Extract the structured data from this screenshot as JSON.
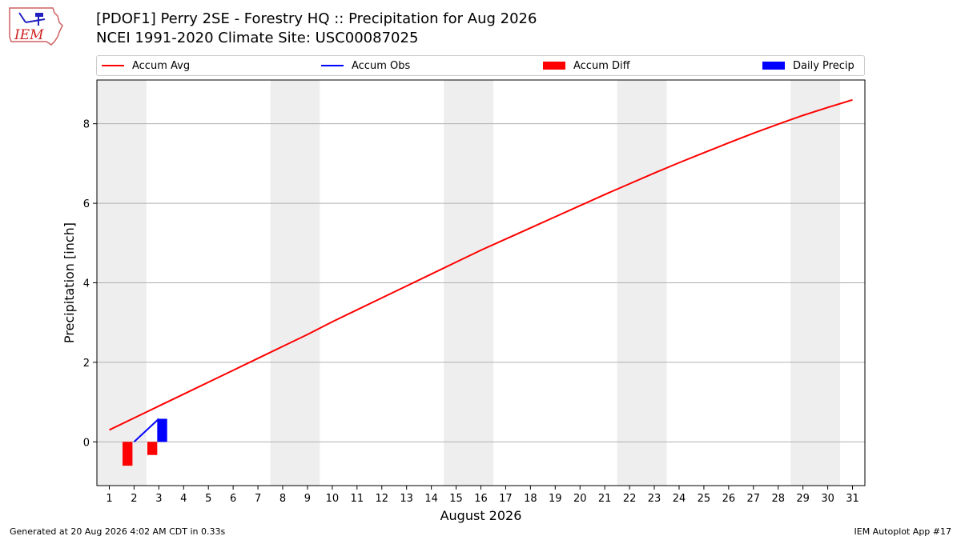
{
  "header": {
    "title_line1": "[PDOF1] Perry 2SE - Forestry HQ :: Precipitation for Aug 2026",
    "title_line2": "NCEI 1991-2020 Climate Site: USC00087025",
    "logo_text": "IEM"
  },
  "footer": {
    "generated": "Generated at 20 Aug 2026 4:02 AM CDT in 0.33s",
    "app": "IEM Autoplot App #17"
  },
  "colors": {
    "accum_avg": "#ff0000",
    "accum_obs": "#0000ff",
    "accum_diff": "#ff0000",
    "daily_precip": "#0000ff",
    "weekend_band": "#eeeeee",
    "grid": "#b0b0b0"
  },
  "chart_data": {
    "type": "line",
    "title": "[PDOF1] Perry 2SE - Forestry HQ :: Precipitation for Aug 2026",
    "subtitle": "NCEI 1991-2020 Climate Site: USC00087025",
    "xlabel": "August 2026",
    "ylabel": "Precipitation [inch]",
    "xlim": [
      0.5,
      31.5
    ],
    "ylim": [
      -1.1,
      9.1
    ],
    "x_ticks": [
      1,
      2,
      3,
      4,
      5,
      6,
      7,
      8,
      9,
      10,
      11,
      12,
      13,
      14,
      15,
      16,
      17,
      18,
      19,
      20,
      21,
      22,
      23,
      24,
      25,
      26,
      27,
      28,
      29,
      30,
      31
    ],
    "y_ticks": [
      0,
      2,
      4,
      6,
      8
    ],
    "grid": "horizontal",
    "legend_position": "top",
    "legend": [
      "Accum Avg",
      "Accum Obs",
      "Accum Diff",
      "Daily Precip"
    ],
    "weekend_bands": [
      [
        0.5,
        2.5
      ],
      [
        7.5,
        9.5
      ],
      [
        14.5,
        16.5
      ],
      [
        21.5,
        23.5
      ],
      [
        28.5,
        30.5
      ]
    ],
    "series": [
      {
        "name": "Accum Avg",
        "kind": "line",
        "x": [
          1,
          2,
          3,
          4,
          5,
          6,
          7,
          8,
          9,
          10,
          11,
          12,
          13,
          14,
          15,
          16,
          17,
          18,
          19,
          20,
          21,
          22,
          23,
          24,
          25,
          26,
          27,
          28,
          29,
          30,
          31
        ],
        "values": [
          0.3,
          0.6,
          0.9,
          1.2,
          1.5,
          1.8,
          2.1,
          2.4,
          2.7,
          3.02,
          3.32,
          3.62,
          3.92,
          4.22,
          4.52,
          4.82,
          5.1,
          5.38,
          5.66,
          5.94,
          6.22,
          6.49,
          6.76,
          7.02,
          7.27,
          7.52,
          7.76,
          7.99,
          8.21,
          8.41,
          8.6
        ]
      },
      {
        "name": "Accum Obs",
        "kind": "line",
        "x": [
          2,
          3
        ],
        "values": [
          0.0,
          0.58
        ]
      },
      {
        "name": "Accum Diff",
        "kind": "bar",
        "x": [
          2,
          3
        ],
        "values": [
          -0.6,
          -0.33
        ]
      },
      {
        "name": "Daily Precip",
        "kind": "bar",
        "x": [
          3
        ],
        "values": [
          0.58
        ]
      }
    ]
  }
}
